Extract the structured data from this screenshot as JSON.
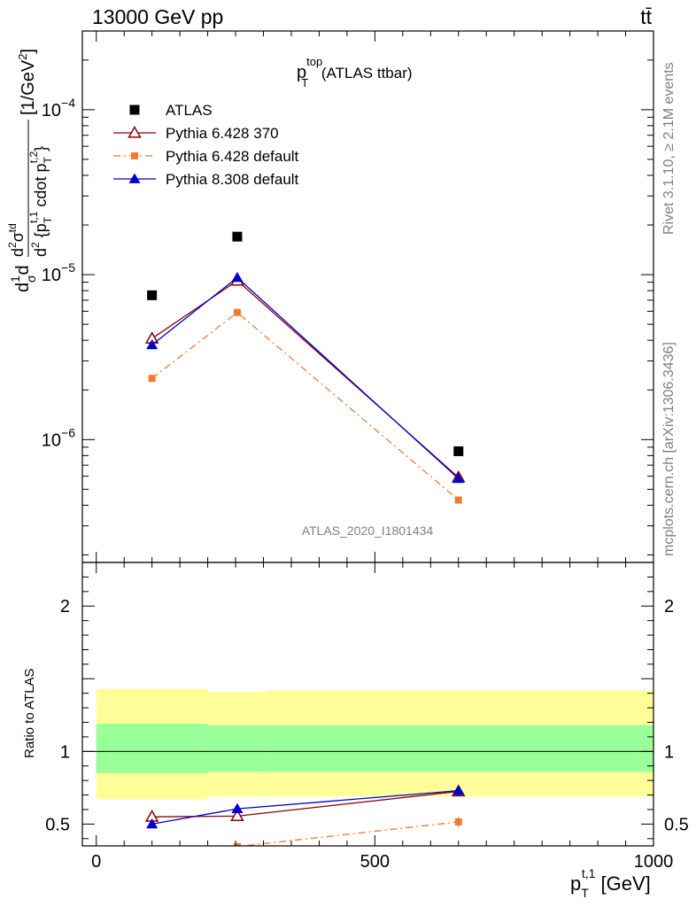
{
  "header": {
    "energy_label": "13000 GeV pp",
    "process_label": "tt̄"
  },
  "side_labels": {
    "rivet": "Rivet 3.1.10, ≥ 2.1M events",
    "mcplots": "mcplots.cern.ch [arXiv:1306.3436]"
  },
  "analysis_id": "ATLAS_2020_I1801434",
  "chart_data": [
    {
      "type": "line",
      "panel": "main",
      "title": {
        "main": "p",
        "sup": "top",
        "sub": "T",
        "rest": " (ATLAS ttbar)"
      },
      "ylabel": "d¹/σdd²σᵗᵈ / d² {pᵀᵗ,¹ cdot pᵀᵗ,²} [1/GeV²]",
      "ylabel_parts": {
        "unit": "[1/GeV",
        "unit_sup": "2",
        "unit_close": "]",
        "denominator": "d",
        "denominator_sup": "2",
        "denominator_body": " {p",
        "denominator_sub": "T",
        "denominator_sup2": "t,1",
        "denominator_mid": " cdot p",
        "denominator_sub2": "T",
        "denominator_sup3": "t,2",
        "denominator_close": "}",
        "numerator": "d",
        "numerator_sup": "2",
        "numerator_body": "σ",
        "numerator_sup2": "td",
        "prefix": "d",
        "prefix_frac_top": "1",
        "prefix_frac_bottom": "σ",
        "prefix_tail": "d"
      },
      "yscale": "log",
      "ylim": [
        1.8e-07,
        0.0003
      ],
      "xlim": [
        -25,
        1000
      ],
      "yticks": [
        {
          "base": "10",
          "exp": "−4",
          "value": 0.0001
        },
        {
          "base": "10",
          "exp": "−5",
          "value": 1e-05
        },
        {
          "base": "10",
          "exp": "−6",
          "value": 1e-06
        }
      ],
      "legend_position": "top-left",
      "series": [
        {
          "name": "ATLAS",
          "color": "#000000",
          "marker": "square",
          "line": "none",
          "x": [
            100,
            253,
            650
          ],
          "y": [
            7.5e-06,
            1.7e-05,
            8.5e-07
          ]
        },
        {
          "name": "Pythia 6.428 370",
          "color": "#8b0000",
          "marker": "open-triangle",
          "line": "solid",
          "x": [
            100,
            253,
            650
          ],
          "y": [
            4.1e-06,
            9.2e-06,
            5.9e-07
          ]
        },
        {
          "name": "Pythia 6.428 default",
          "color": "#f07b31",
          "marker": "small-square",
          "line": "dashdot",
          "x": [
            100,
            253,
            650
          ],
          "y": [
            2.35e-06,
            5.9e-06,
            4.3e-07
          ]
        },
        {
          "name": "Pythia 8.308 default",
          "color": "#0000cd",
          "marker": "filled-triangle",
          "line": "solid",
          "x": [
            100,
            253,
            650
          ],
          "y": [
            3.75e-06,
            9.6e-06,
            5.8e-07
          ]
        }
      ]
    },
    {
      "type": "line",
      "panel": "ratio",
      "ylabel": "Ratio to ATLAS",
      "xlabel": {
        "main": "p",
        "sub": "T",
        "sup": "t,1",
        "rest": " [GeV]"
      },
      "ylim": [
        0.35,
        2.3
      ],
      "xlim": [
        -25,
        1000
      ],
      "xticks": [
        0,
        500,
        1000
      ],
      "yticks": [
        {
          "label": "2",
          "value": 2
        },
        {
          "label": "1",
          "value": 1
        },
        {
          "label": "0.5",
          "value": 0.5
        }
      ],
      "bands": {
        "edges": [
          0,
          200,
          305,
          1000
        ],
        "yellow": {
          "color": "#ffff99",
          "lo": [
            0.67,
            0.69,
            0.69
          ],
          "hi": [
            1.43,
            1.41,
            1.42
          ]
        },
        "green": {
          "color": "#99ff99",
          "lo": [
            0.85,
            0.86,
            0.86
          ],
          "hi": [
            1.19,
            1.18,
            1.18
          ]
        }
      },
      "series": [
        {
          "name": "Pythia 6.428 370",
          "color": "#8b0000",
          "marker": "open-triangle",
          "line": "solid",
          "x": [
            100,
            253,
            650
          ],
          "y": [
            0.55,
            0.555,
            0.725
          ],
          "err": [
            0.02,
            0.02,
            0.03
          ]
        },
        {
          "name": "Pythia 6.428 default",
          "color": "#f07b31",
          "marker": "small-square",
          "line": "dashdot",
          "x": [
            100,
            253,
            650
          ],
          "y": [
            0.31,
            0.345,
            0.515
          ],
          "err": [
            0.01,
            0.01,
            0.035
          ]
        },
        {
          "name": "Pythia 8.308 default",
          "color": "#0000cd",
          "marker": "filled-triangle",
          "line": "solid",
          "x": [
            100,
            253,
            650
          ],
          "y": [
            0.5,
            0.605,
            0.73
          ],
          "err": [
            0.02,
            0.02,
            0.035
          ]
        }
      ]
    }
  ]
}
